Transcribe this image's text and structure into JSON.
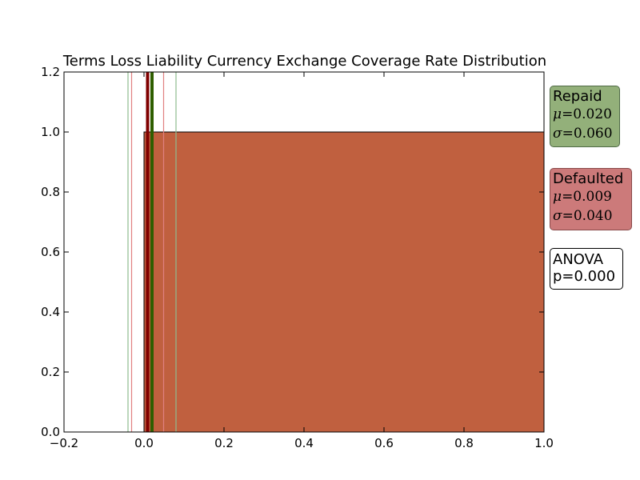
{
  "chart_data": {
    "type": "bar",
    "title": "Terms Loss Liability Currency Exchange Coverage Rate Distribution",
    "xlabel": "",
    "ylabel": "",
    "xlim": [
      -0.2,
      1.0
    ],
    "ylim": [
      0.0,
      1.2
    ],
    "xticks": [
      "−0.2",
      "0.0",
      "0.2",
      "0.4",
      "0.6",
      "0.8",
      "1.0"
    ],
    "yticks": [
      "0.0",
      "0.2",
      "0.4",
      "0.6",
      "0.8",
      "1.0",
      "1.2"
    ],
    "grid": false,
    "bars": [
      {
        "x0": 0.0,
        "x1": 1.0,
        "height": 1.0,
        "color": "#c0603f"
      }
    ],
    "vlines": [
      {
        "x": 0.02,
        "color": "#2e5e00",
        "style": "mean"
      },
      {
        "x": -0.04,
        "color": "#8fbc8f",
        "style": "sigma"
      },
      {
        "x": 0.08,
        "color": "#8fbc8f",
        "style": "sigma"
      },
      {
        "x": 0.009,
        "color": "#800000",
        "style": "mean"
      },
      {
        "x": -0.031,
        "color": "#e08080",
        "style": "sigma"
      },
      {
        "x": 0.049,
        "color": "#e08080",
        "style": "sigma"
      }
    ]
  },
  "stats": {
    "repaid": {
      "title": "Repaid",
      "mu_label": "μ",
      "mu_value": "=0.020",
      "sigma_label": "σ",
      "sigma_value": "=0.060",
      "color": "#93b07a"
    },
    "defaulted": {
      "title": "Defaulted",
      "mu_label": "μ",
      "mu_value": "=0.009",
      "sigma_label": "σ",
      "sigma_value": "=0.040",
      "color": "#cc7a7a"
    },
    "anova": {
      "line1": "ANOVA",
      "line2": "p=0.000"
    }
  }
}
